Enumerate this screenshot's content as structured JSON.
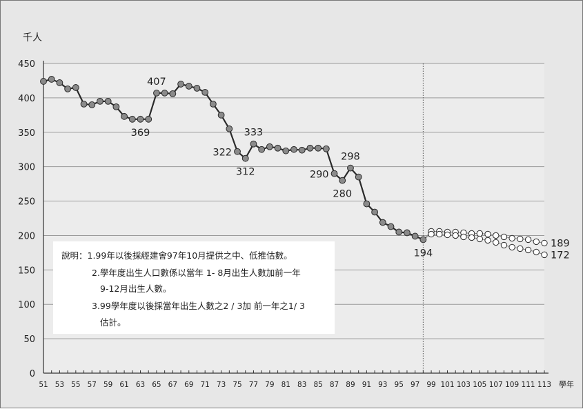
{
  "chart_data": {
    "type": "line",
    "ylabel": "千人",
    "xlabel": "學年",
    "ylim": [
      0,
      450
    ],
    "yticks": [
      0,
      50,
      100,
      150,
      200,
      250,
      300,
      350,
      400,
      450
    ],
    "xlim": [
      51,
      113
    ],
    "xtick_labels": [
      "51",
      "53",
      "55",
      "57",
      "59",
      "61",
      "63",
      "65",
      "67",
      "69",
      "71",
      "73",
      "75",
      "77",
      "79",
      "81",
      "83",
      "85",
      "87",
      "89",
      "91",
      "93",
      "95",
      "97",
      "99",
      "101",
      "103",
      "105",
      "107",
      "109",
      "111",
      "113"
    ],
    "grid": "horizontal",
    "divider_x": 98,
    "series": [
      {
        "style": "actual",
        "x": [
          51,
          52,
          53,
          54,
          55,
          56,
          57,
          58,
          59,
          60,
          61,
          62,
          63,
          64,
          65,
          66,
          67,
          68,
          69,
          70,
          71,
          72,
          73,
          74,
          75,
          76,
          77,
          78,
          79,
          80,
          81,
          82,
          83,
          84,
          85,
          86,
          87,
          88,
          89,
          90,
          91,
          92,
          93,
          94,
          95,
          96,
          97,
          98
        ],
        "values": [
          424,
          427,
          422,
          413,
          415,
          391,
          390,
          395,
          395,
          387,
          373,
          369,
          369,
          369,
          407,
          407,
          406,
          420,
          417,
          414,
          408,
          391,
          375,
          355,
          322,
          312,
          333,
          325,
          329,
          327,
          323,
          325,
          324,
          327,
          327,
          326,
          290,
          280,
          298,
          285,
          246,
          234,
          219,
          213,
          205,
          204,
          199,
          194
        ]
      },
      {
        "style": "estimate-middle",
        "x": [
          98,
          99,
          100,
          101,
          102,
          103,
          104,
          105,
          106,
          107,
          108,
          109,
          110,
          111,
          112,
          113
        ],
        "values": [
          194,
          206,
          206,
          205,
          205,
          204,
          203,
          203,
          202,
          200,
          198,
          196,
          195,
          194,
          191,
          189
        ]
      },
      {
        "style": "estimate-low",
        "x": [
          98,
          99,
          100,
          101,
          102,
          103,
          104,
          105,
          106,
          107,
          108,
          109,
          110,
          111,
          112,
          113
        ],
        "values": [
          194,
          202,
          202,
          201,
          200,
          198,
          197,
          195,
          193,
          190,
          186,
          183,
          181,
          179,
          176,
          172
        ]
      }
    ],
    "annotations": [
      {
        "x": 65,
        "y": 407,
        "text": "407",
        "pos": "above"
      },
      {
        "x": 63,
        "y": 369,
        "text": "369",
        "pos": "below"
      },
      {
        "x": 75,
        "y": 322,
        "text": "322",
        "pos": "left"
      },
      {
        "x": 76,
        "y": 312,
        "text": "312",
        "pos": "below"
      },
      {
        "x": 77,
        "y": 333,
        "text": "333",
        "pos": "above"
      },
      {
        "x": 87,
        "y": 290,
        "text": "290",
        "pos": "left"
      },
      {
        "x": 88,
        "y": 280,
        "text": "280",
        "pos": "below"
      },
      {
        "x": 89,
        "y": 298,
        "text": "298",
        "pos": "above"
      },
      {
        "x": 98,
        "y": 194,
        "text": "194",
        "pos": "below"
      },
      {
        "x": 113,
        "y": 189,
        "text": "189",
        "pos": "right"
      },
      {
        "x": 113,
        "y": 172,
        "text": "172",
        "pos": "right"
      }
    ]
  },
  "notes": {
    "line1": "說明：1.99年以後採經建會97年10月提供之中、低推估數。",
    "line2": "2.學年度出生人口數係以當年 1- 8月出生人數加前一年",
    "line3": "9-12月出生人數。",
    "line4": "3.99學年度以後採當年出生人數之2 / 3加 前一年之1/ 3",
    "line5": "估計。"
  }
}
